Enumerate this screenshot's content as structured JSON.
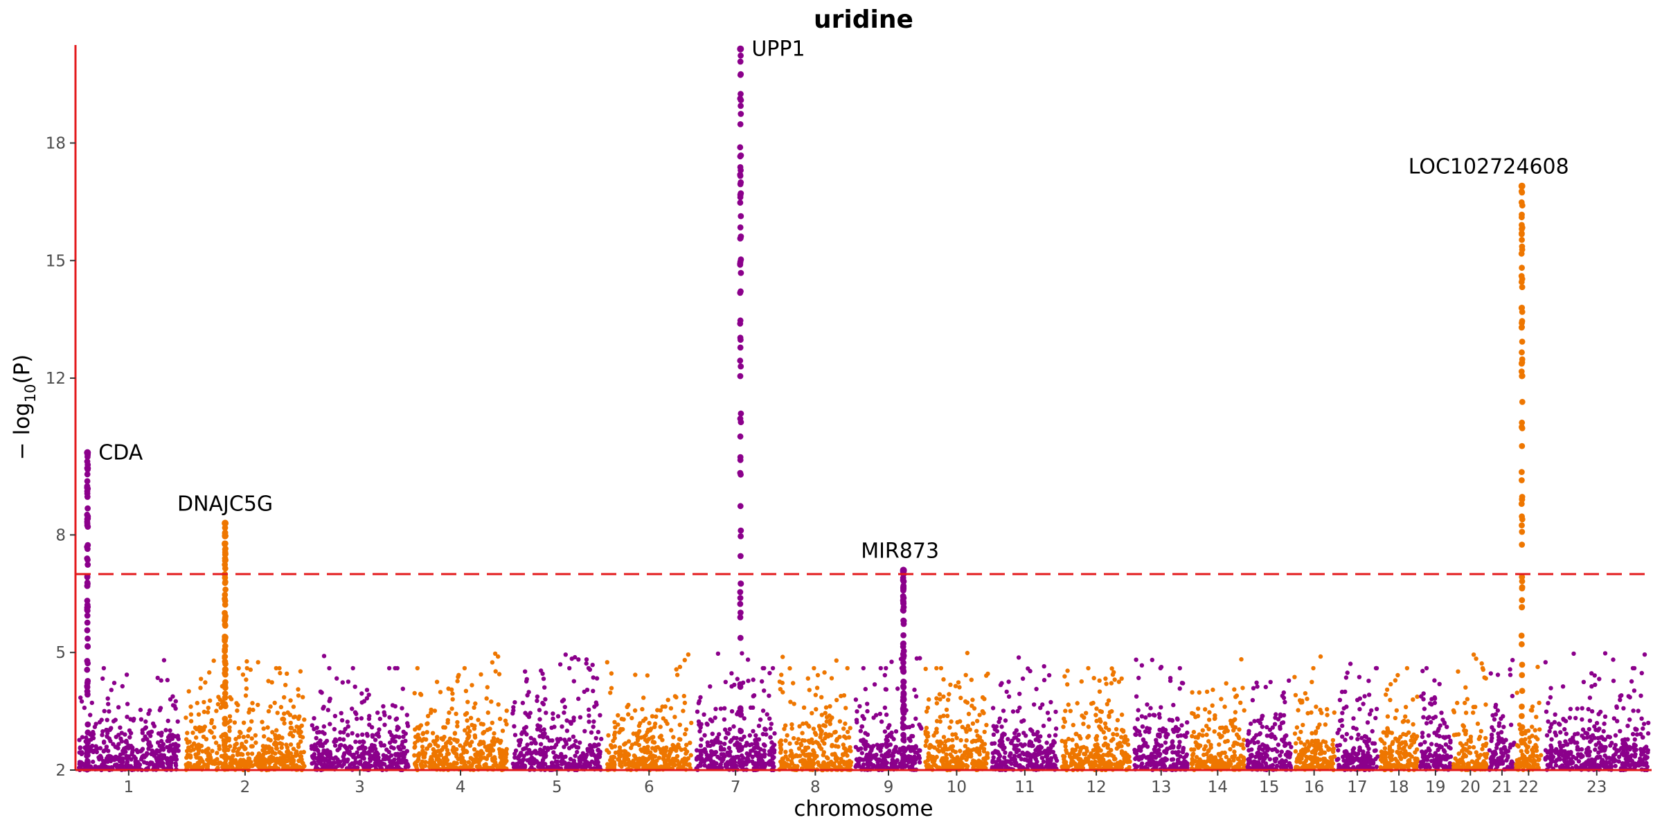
{
  "chart_data": {
    "type": "scatter",
    "subtype": "manhattan",
    "title": "uridine",
    "xlabel": "chromosome",
    "ylabel_prefix": "− log",
    "ylabel_sub": "10",
    "ylabel_suffix": "(P)",
    "ylim": [
      2,
      20.5
    ],
    "yticks": [
      2,
      5,
      8,
      12,
      15,
      18
    ],
    "significance_threshold": 7,
    "grid": false,
    "colors": {
      "odd": "#8B008B",
      "even": "#EE7600",
      "axis": "#E31A1C",
      "threshold": "#E31A1C"
    },
    "chromosomes": [
      {
        "label": "1",
        "start": 0,
        "end": 1.6
      },
      {
        "label": "2",
        "start": 1.6,
        "end": 3.5
      },
      {
        "label": "3",
        "start": 3.5,
        "end": 5.05
      },
      {
        "label": "4",
        "start": 5.05,
        "end": 6.53
      },
      {
        "label": "5",
        "start": 6.53,
        "end": 7.95
      },
      {
        "label": "6",
        "start": 7.95,
        "end": 9.3
      },
      {
        "label": "7",
        "start": 9.3,
        "end": 10.55
      },
      {
        "label": "8",
        "start": 10.55,
        "end": 11.7
      },
      {
        "label": "9",
        "start": 11.7,
        "end": 12.75
      },
      {
        "label": "10",
        "start": 12.75,
        "end": 13.75
      },
      {
        "label": "11",
        "start": 13.75,
        "end": 14.8
      },
      {
        "label": "12",
        "start": 14.8,
        "end": 15.9
      },
      {
        "label": "13",
        "start": 15.9,
        "end": 16.75
      },
      {
        "label": "14",
        "start": 16.75,
        "end": 17.6
      },
      {
        "label": "15",
        "start": 17.6,
        "end": 18.3
      },
      {
        "label": "16",
        "start": 18.3,
        "end": 18.95
      },
      {
        "label": "17",
        "start": 18.95,
        "end": 19.6
      },
      {
        "label": "18",
        "start": 19.6,
        "end": 20.2
      },
      {
        "label": "19",
        "start": 20.2,
        "end": 20.7
      },
      {
        "label": "20",
        "start": 20.7,
        "end": 21.25
      },
      {
        "label": "21",
        "start": 21.25,
        "end": 21.65
      },
      {
        "label": "22",
        "start": 21.65,
        "end": 22.05
      },
      {
        "label": "23",
        "start": 22.05,
        "end": 23.7
      }
    ],
    "peaks": [
      {
        "gene": "CDA",
        "chromosome": "1",
        "pos": 0.18,
        "top": 10.1
      },
      {
        "gene": "DNAJC5G",
        "chromosome": "2",
        "pos": 2.25,
        "top": 8.3
      },
      {
        "gene": "UPP1",
        "chromosome": "7",
        "pos": 10.0,
        "top": 20.4
      },
      {
        "gene": "MIR873",
        "chromosome": "9",
        "pos": 12.45,
        "top": 7.1
      },
      {
        "gene": "LOC102724608",
        "chromosome": "22",
        "pos": 21.75,
        "top": 16.9
      }
    ],
    "annotations": [
      "CDA",
      "DNAJC5G",
      "UPP1",
      "MIR873",
      "LOC102724608"
    ]
  }
}
